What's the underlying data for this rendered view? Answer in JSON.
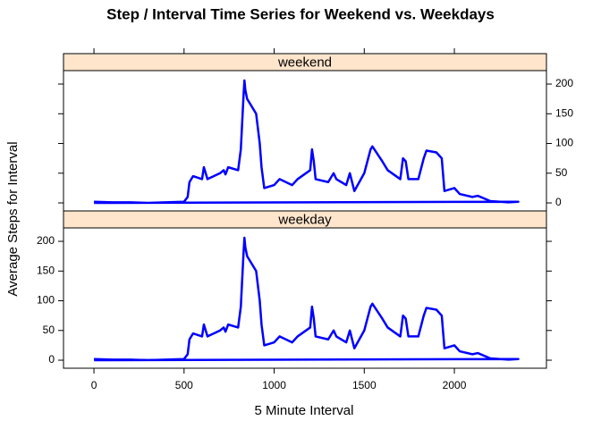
{
  "chart_data": {
    "type": "line",
    "title": "Step / Interval Time Series for Weekend vs. Weekdays",
    "xlabel": "5 Minute Interval",
    "ylabel": "Average Steps for Interval",
    "x": [
      0,
      100,
      200,
      300,
      400,
      500,
      520,
      530,
      550,
      600,
      610,
      620,
      630,
      700,
      720,
      730,
      745,
      800,
      815,
      830,
      835,
      840,
      850,
      900,
      920,
      930,
      945,
      1000,
      1030,
      1100,
      1130,
      1200,
      1210,
      1220,
      1230,
      1300,
      1330,
      1345,
      1400,
      1420,
      1445,
      1500,
      1535,
      1545,
      1600,
      1630,
      1700,
      1715,
      1730,
      1745,
      1800,
      1830,
      1845,
      1900,
      1930,
      1945,
      2000,
      2030,
      2100,
      2130,
      2200,
      2300,
      2355,
      0
    ],
    "series": [
      {
        "name": "weekend",
        "color": "#0000ff",
        "values": [
          2,
          1,
          1,
          0,
          1,
          2,
          10,
          35,
          45,
          40,
          60,
          50,
          40,
          50,
          55,
          48,
          60,
          55,
          90,
          180,
          206,
          190,
          175,
          150,
          100,
          60,
          25,
          30,
          40,
          30,
          40,
          55,
          90,
          70,
          40,
          35,
          50,
          40,
          30,
          50,
          20,
          50,
          90,
          95,
          70,
          55,
          40,
          75,
          70,
          40,
          40,
          75,
          88,
          85,
          75,
          20,
          25,
          15,
          10,
          12,
          3,
          1,
          2,
          0
        ]
      },
      {
        "name": "weekday",
        "color": "#0000ff",
        "values": [
          2,
          1,
          1,
          0,
          1,
          2,
          10,
          35,
          45,
          40,
          60,
          50,
          40,
          50,
          55,
          48,
          60,
          55,
          90,
          180,
          206,
          190,
          175,
          150,
          100,
          60,
          25,
          30,
          40,
          30,
          40,
          55,
          90,
          70,
          40,
          35,
          50,
          40,
          30,
          50,
          20,
          50,
          90,
          95,
          70,
          55,
          40,
          75,
          70,
          40,
          40,
          75,
          88,
          85,
          75,
          20,
          25,
          15,
          10,
          12,
          3,
          1,
          2,
          0
        ]
      }
    ],
    "xlim": [
      -169,
      2511
    ],
    "xticks": [
      0,
      500,
      1000,
      1500,
      2000
    ],
    "ylim": [
      -13.5,
      222.6
    ],
    "yticks": [
      0,
      50,
      100,
      150,
      200
    ],
    "strip_color": "#ffe5cc"
  }
}
